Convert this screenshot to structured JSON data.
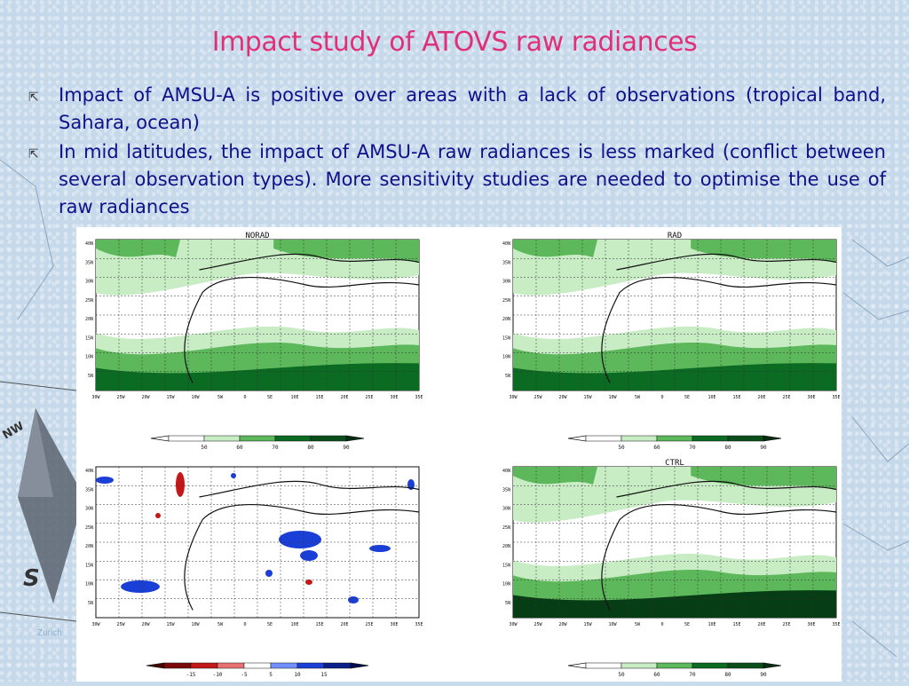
{
  "slide": {
    "title": "Impact study of ATOVS raw radiances",
    "bullets": [
      "Impact of AMSU-A is positive over areas with a lack of observations (tropical band, Sahara, ocean)",
      "In mid latitudes, the impact of AMSU-A raw radiances is less marked (conflict between several observation types). More sensitivity studies are needed  to optimise the use of raw radiances"
    ],
    "footer": "Zurich",
    "compass_labels": [
      "NW",
      "S"
    ]
  },
  "maps": [
    {
      "title": "NORAD"
    },
    {
      "title": "RAD"
    },
    {
      "title": ""
    },
    {
      "title": "CTRL"
    }
  ],
  "map_axes": {
    "lat_labels": [
      "40N",
      "35N",
      "30N",
      "25N",
      "20N",
      "15N",
      "10N",
      "5N"
    ],
    "lon_labels": [
      "30W",
      "25W",
      "20W",
      "15W",
      "10W",
      "5W",
      "0",
      "5E",
      "10E",
      "15E",
      "20E",
      "25E",
      "30E",
      "35E"
    ]
  },
  "colorbars": {
    "green": [
      "50",
      "60",
      "70",
      "80",
      "90"
    ],
    "diff": [
      "-15",
      "-10",
      "-5",
      "5",
      "10",
      "15"
    ]
  },
  "colors": {
    "title": "#e0307a",
    "text": "#10108a",
    "green_light": "#c8ecc4",
    "green_mid": "#5cb85a",
    "green_dark": "#0b6b22",
    "diff_red": "#c41818",
    "diff_blue": "#1a3fd6"
  }
}
